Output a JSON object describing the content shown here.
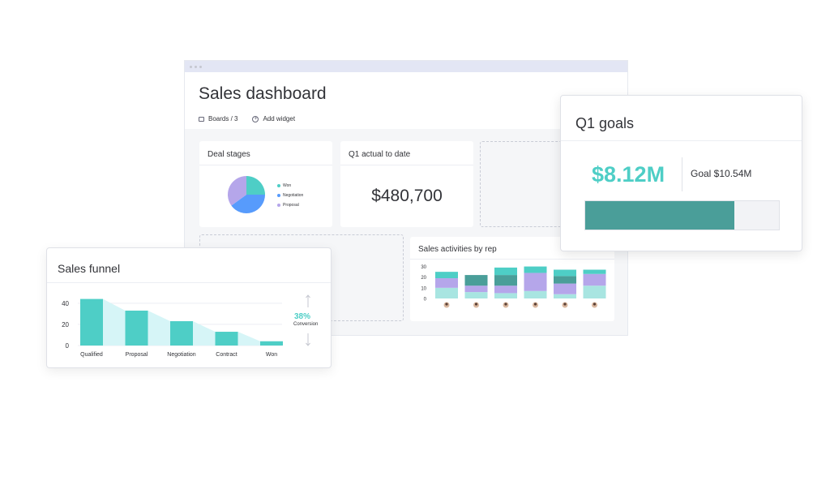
{
  "window": {
    "title": "Sales dashboard",
    "toolbar": {
      "boards_label": "Boards / 3",
      "add_widget_label": "Add widget"
    }
  },
  "deal_stages": {
    "title": "Deal stages",
    "legend": [
      "Won",
      "Negotiation",
      "Proposal"
    ]
  },
  "q1_actual": {
    "title": "Q1 actual to date",
    "value": "$480,700"
  },
  "q1_goals": {
    "title": "Q1 goals",
    "value": "$8.12M",
    "goal_label": "Goal $10.54M",
    "progress": 0.77
  },
  "sales_funnel": {
    "title": "Sales funnel",
    "conversion_pct": "38%",
    "conversion_label": "Conversion"
  },
  "sales_activities": {
    "title": "Sales activities by rep"
  },
  "colors": {
    "teal": "#4ecec6",
    "dark_teal": "#4a9e99",
    "lavender": "#b5a6ea",
    "blue": "#579bfc",
    "light_teal": "#a8e5e1",
    "funnel_area": "#d6f5f7"
  },
  "chart_data": [
    {
      "type": "pie",
      "categories": [
        "Won",
        "Negotiation",
        "Proposal"
      ],
      "values": [
        25,
        40,
        35
      ]
    },
    {
      "type": "bar",
      "categories": [
        "Qualified",
        "Proposal",
        "Negotiation",
        "Contract",
        "Won"
      ],
      "values": [
        44,
        33,
        23,
        13,
        4
      ],
      "yticks": [
        0,
        20,
        40
      ],
      "ylim": [
        0,
        46
      ]
    },
    {
      "type": "bar",
      "stacked": true,
      "categories": [
        "Rep 1",
        "Rep 2",
        "Rep 3",
        "Rep 4",
        "Rep 5",
        "Rep 6"
      ],
      "yticks": [
        0,
        10,
        20,
        30
      ],
      "ylim": [
        0,
        35
      ],
      "series": [
        {
          "values": [
            10,
            6,
            5,
            7,
            4,
            12
          ]
        },
        {
          "values": [
            9,
            6,
            7,
            17,
            10,
            11
          ]
        },
        {
          "values": [
            0,
            10,
            10,
            0,
            7,
            0
          ]
        },
        {
          "values": [
            0,
            0,
            0,
            6,
            0,
            4
          ]
        },
        {
          "values": [
            6,
            0,
            7,
            0,
            6,
            0
          ]
        }
      ]
    }
  ]
}
